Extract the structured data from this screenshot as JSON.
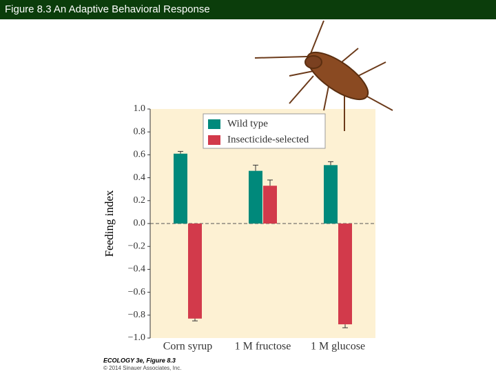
{
  "header": {
    "title": "Figure 8.3  An Adaptive Behavioral Response"
  },
  "footer": {
    "source": "ECOLOGY 3e, Figure 8.3",
    "copyright": "© 2014 Sinauer Associates, Inc."
  },
  "chart_data": {
    "type": "bar",
    "y_label": "Feeding index",
    "categories": [
      "Corn syrup",
      "1 M fructose",
      "1 M glucose"
    ],
    "series": [
      {
        "name": "Wild type",
        "color": "#00897b",
        "values": [
          0.61,
          0.46,
          0.51
        ],
        "errors": [
          0.02,
          0.05,
          0.03
        ]
      },
      {
        "name": "Insecticide-selected",
        "color": "#d23a4b",
        "values": [
          -0.83,
          0.33,
          -0.88
        ],
        "errors": [
          0.02,
          0.05,
          0.03
        ]
      }
    ],
    "ylim": [
      -1,
      1
    ],
    "yticks": [
      {
        "value": -1,
        "label": "−1.0"
      },
      {
        "value": -0.8,
        "label": "−0.8"
      },
      {
        "value": -0.6,
        "label": "−0.6"
      },
      {
        "value": -0.4,
        "label": "−0.4"
      },
      {
        "value": -0.2,
        "label": "−0.2"
      },
      {
        "value": 0,
        "label": "0.0"
      },
      0.2,
      0.4,
      0.6,
      0.8,
      {
        "value": 1,
        "label": "1.0"
      }
    ],
    "legend": "top"
  }
}
